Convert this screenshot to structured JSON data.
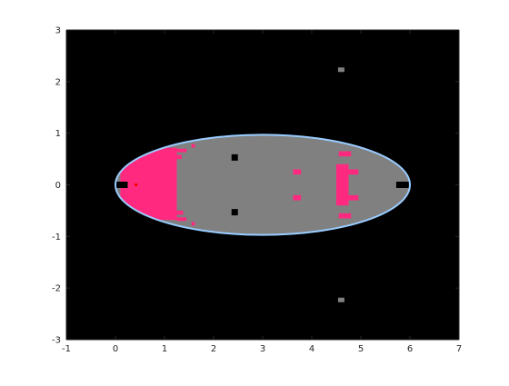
{
  "chart_data": {
    "type": "heatmap",
    "title": "",
    "xlabel": "",
    "ylabel": "",
    "xlim": [
      -1,
      7
    ],
    "ylim": [
      -3,
      3
    ],
    "xticks": [
      -1,
      0,
      1,
      2,
      3,
      4,
      5,
      6,
      7
    ],
    "yticks": [
      -3,
      -2,
      -1,
      0,
      1,
      2,
      3
    ],
    "xtick_labels": [
      "-1",
      "0",
      "1",
      "2",
      "3",
      "4",
      "5",
      "6",
      "7"
    ],
    "ytick_labels": [
      "-3",
      "-2",
      "-1",
      "0",
      "1",
      "2",
      "3"
    ],
    "grid": false,
    "background_color": "#000000",
    "fill_color": "#808080",
    "highlight_color": "#ff2a7f",
    "boundary_color": "#99ccff",
    "boundary": {
      "shape": "ellipse",
      "center": [
        3.0,
        0.0
      ],
      "semi_axis_x": 3.0,
      "semi_axis_y": 0.97
    },
    "highlight_regions": [
      {
        "x": [
          0.1,
          1.25
        ],
        "y": [
          -0.68,
          0.72
        ],
        "note": ""
      },
      {
        "x": [
          3.62,
          3.78
        ],
        "y": [
          0.2,
          0.3
        ],
        "note": ""
      },
      {
        "x": [
          3.62,
          3.78
        ],
        "y": [
          -0.3,
          -0.2
        ],
        "note": ""
      },
      {
        "x": [
          4.5,
          4.75
        ],
        "y": [
          -0.4,
          0.4
        ],
        "note": ""
      },
      {
        "x": [
          4.75,
          4.95
        ],
        "y": [
          0.2,
          0.3
        ],
        "note": ""
      },
      {
        "x": [
          4.75,
          4.95
        ],
        "y": [
          -0.3,
          -0.2
        ],
        "note": ""
      },
      {
        "x": [
          4.55,
          4.8
        ],
        "y": [
          0.55,
          0.65
        ],
        "note": ""
      },
      {
        "x": [
          4.55,
          4.8
        ],
        "y": [
          -0.65,
          -0.55
        ],
        "note": ""
      }
    ],
    "black_cells": [
      [
        2.43,
        0.53
      ],
      [
        2.43,
        -0.53
      ],
      [
        0.12,
        0.0
      ],
      [
        5.85,
        0.0
      ]
    ],
    "gray_points": [
      [
        4.6,
        2.23
      ],
      [
        4.6,
        -2.23
      ]
    ]
  }
}
